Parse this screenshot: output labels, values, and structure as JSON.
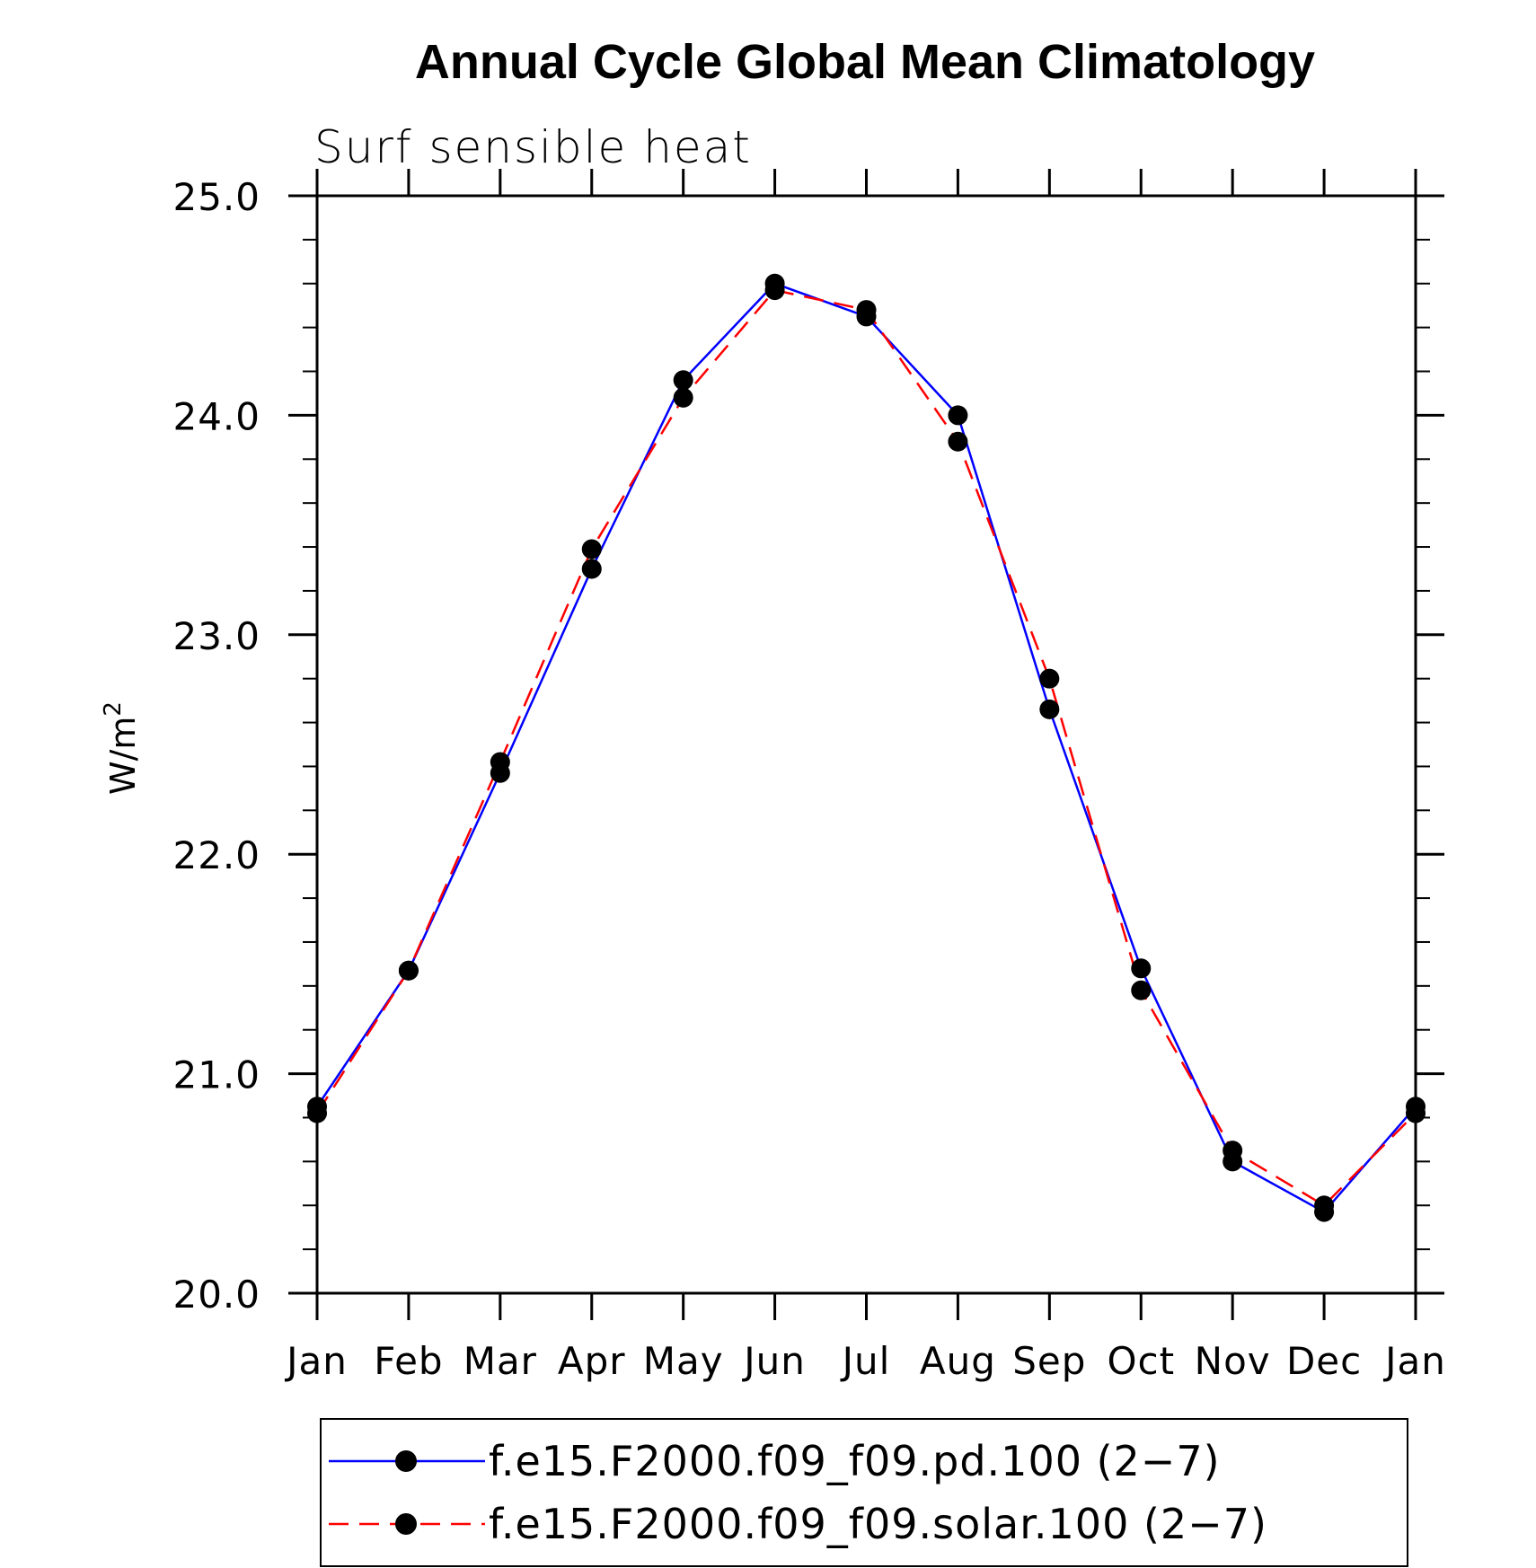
{
  "chart_data": {
    "type": "line",
    "title": "Annual Cycle Global Mean Climatology",
    "subtitle": "Surf sensible heat",
    "ylabel": "W/m",
    "ylabel_sup": "2",
    "xlabel": "",
    "categories": [
      "Jan",
      "Feb",
      "Mar",
      "Apr",
      "May",
      "Jun",
      "Jul",
      "Aug",
      "Sep",
      "Oct",
      "Nov",
      "Dec",
      "Jan"
    ],
    "ylim": [
      20.0,
      25.0
    ],
    "yticks": [
      "20.0",
      "21.0",
      "22.0",
      "23.0",
      "24.0",
      "25.0"
    ],
    "y_minor_step": 0.2,
    "series": [
      {
        "name": "f.e15.F2000.f09_f09.pd.100 (2−7)",
        "color": "#0000ff",
        "style": "solid",
        "marker": "circle",
        "values": [
          20.85,
          21.47,
          22.37,
          23.3,
          24.16,
          24.6,
          24.45,
          24.0,
          22.66,
          21.48,
          20.6,
          20.37,
          20.85
        ]
      },
      {
        "name": "f.e15.F2000.f09_f09.solar.100 (2−7)",
        "color": "#ff0000",
        "style": "dashed",
        "marker": "circle",
        "values": [
          20.82,
          21.47,
          22.42,
          23.39,
          24.08,
          24.57,
          24.48,
          23.88,
          22.8,
          21.38,
          20.65,
          20.4,
          20.82
        ]
      }
    ],
    "legend_position": "bottom"
  }
}
